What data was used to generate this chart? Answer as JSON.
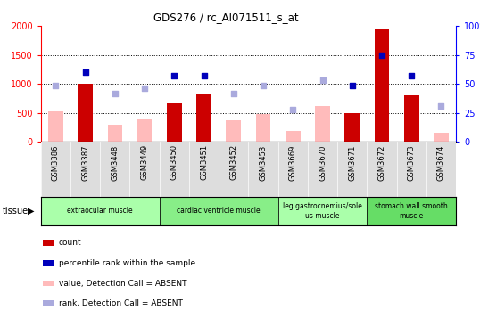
{
  "title": "GDS276 / rc_AI071511_s_at",
  "samples": [
    "GSM3386",
    "GSM3387",
    "GSM3448",
    "GSM3449",
    "GSM3450",
    "GSM3451",
    "GSM3452",
    "GSM3453",
    "GSM3669",
    "GSM3670",
    "GSM3671",
    "GSM3672",
    "GSM3673",
    "GSM3674"
  ],
  "count_present": [
    null,
    1000,
    null,
    null,
    670,
    820,
    null,
    null,
    null,
    null,
    490,
    1940,
    800,
    null
  ],
  "count_absent": [
    520,
    null,
    300,
    390,
    null,
    null,
    380,
    480,
    190,
    620,
    null,
    null,
    null,
    150
  ],
  "rank_present": [
    null,
    60,
    null,
    null,
    57,
    57,
    null,
    null,
    null,
    null,
    49,
    75,
    57,
    null
  ],
  "rank_absent": [
    49,
    null,
    42,
    46,
    null,
    null,
    42,
    49,
    28,
    53,
    null,
    null,
    null,
    31
  ],
  "tissues": [
    {
      "label": "extraocular muscle",
      "start": 0,
      "end": 4,
      "color": "#aaffaa"
    },
    {
      "label": "cardiac ventricle muscle",
      "start": 4,
      "end": 8,
      "color": "#88ee88"
    },
    {
      "label": "leg gastrocnemius/sole\nus muscle",
      "start": 8,
      "end": 11,
      "color": "#aaffaa"
    },
    {
      "label": "stomach wall smooth\nmuscle",
      "start": 11,
      "end": 14,
      "color": "#66dd66"
    }
  ],
  "ylim_left": [
    0,
    2000
  ],
  "ylim_right": [
    0,
    100
  ],
  "yticks_left": [
    0,
    500,
    1000,
    1500,
    2000
  ],
  "yticks_right": [
    0,
    25,
    50,
    75,
    100
  ],
  "color_count_present": "#cc0000",
  "color_count_absent": "#ffbbbb",
  "color_rank_present": "#0000bb",
  "color_rank_absent": "#aaaadd",
  "gridline_values": [
    500,
    1000,
    1500
  ],
  "xticklabel_bg": "#dddddd",
  "plot_bg": "#ffffff"
}
